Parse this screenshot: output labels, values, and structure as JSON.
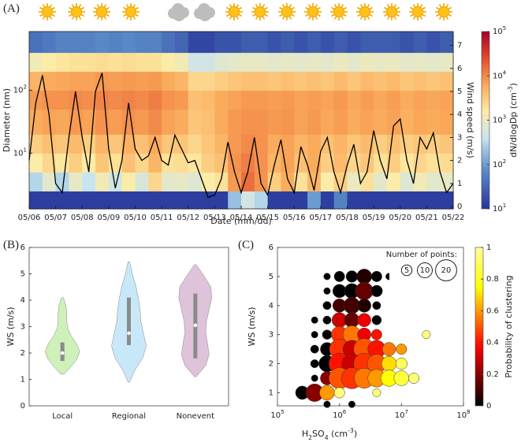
{
  "chart_data": [
    {
      "type": "heatmap",
      "panel": "(A)",
      "xlabel": "Date (mm/dd)",
      "ylabel": "Diameter (nm)",
      "y2label": "Wind speed (m/s)",
      "xlim": [
        6,
        22
      ],
      "xticks": [
        {
          "value": 6,
          "label": "05/06"
        },
        {
          "value": 7,
          "label": "05/07"
        },
        {
          "value": 8,
          "label": "05/08"
        },
        {
          "value": 9,
          "label": "05/09"
        },
        {
          "value": 10,
          "label": "05/10"
        },
        {
          "value": 11,
          "label": "05/11"
        },
        {
          "value": 12,
          "label": "05/12"
        },
        {
          "value": 13,
          "label": "05/13"
        },
        {
          "value": 14,
          "label": "05/14"
        },
        {
          "value": 15,
          "label": "05/15"
        },
        {
          "value": 16,
          "label": "05/16"
        },
        {
          "value": 17,
          "label": "05/17"
        },
        {
          "value": 18,
          "label": "05/18"
        },
        {
          "value": 19,
          "label": "05/19"
        },
        {
          "value": 20,
          "label": "05/20"
        },
        {
          "value": 21,
          "label": "05/21"
        },
        {
          "value": 22,
          "label": "05/22"
        }
      ],
      "ylim": [
        1.3,
        860
      ],
      "yscale": "log",
      "yticks": [
        {
          "value": 10,
          "label": "10^{1}"
        },
        {
          "value": 100,
          "label": "10^{2}"
        }
      ],
      "y2lim": [
        -0.1,
        7.6
      ],
      "y2ticks": [
        0,
        1,
        2,
        3,
        4,
        5,
        6,
        7
      ],
      "colormap": "RdYlBu_r",
      "colorbar": {
        "label": "dN/dlogDp (cm^{-3})",
        "lim": [
          10,
          100000
        ],
        "scale": "log",
        "ticks": [
          {
            "value": 10,
            "label": "10^{1}"
          },
          {
            "value": 100,
            "label": "10^{2}"
          },
          {
            "value": 1000,
            "label": "10^{3}"
          },
          {
            "value": 10000,
            "label": "10^{4}"
          },
          {
            "value": 100000,
            "label": "10^{5}"
          }
        ]
      },
      "x_bins": [
        6,
        6.5,
        7,
        7.5,
        8,
        8.5,
        9,
        9.5,
        10,
        10.5,
        11,
        11.5,
        12,
        12.5,
        13,
        13.5,
        14,
        14.5,
        15,
        15.5,
        16,
        16.5,
        17,
        17.5,
        18,
        18.5,
        19,
        19.5,
        20,
        20.5,
        21,
        21.5,
        22
      ],
      "y_bins": [
        1.3,
        2.5,
        5,
        10,
        20,
        50,
        100,
        200,
        400,
        860
      ],
      "z": [
        [
          12,
          12,
          12,
          12,
          12,
          12,
          12,
          12,
          12,
          12,
          12,
          12,
          12,
          12,
          12,
          200,
          500,
          300,
          12,
          12,
          12,
          100,
          12,
          60,
          12,
          12,
          12,
          12,
          12,
          12,
          12,
          12
        ],
        [
          300,
          800,
          300,
          900,
          400,
          1200,
          500,
          1500,
          600,
          2500,
          800,
          900,
          700,
          1500,
          2000,
          8000,
          15000,
          9000,
          3000,
          6000,
          2000,
          5000,
          1500,
          3000,
          1000,
          2000,
          800,
          1500,
          700,
          1200,
          800,
          900
        ],
        [
          1500,
          2500,
          1800,
          3000,
          1600,
          3500,
          2000,
          4000,
          2500,
          5000,
          2000,
          2200,
          1800,
          3000,
          4000,
          9000,
          12000,
          9000,
          5000,
          7000,
          4000,
          6000,
          3000,
          4500,
          2500,
          3500,
          2000,
          3000,
          1800,
          2500,
          2000,
          2200
        ],
        [
          3000,
          4000,
          3500,
          4500,
          3000,
          5000,
          3500,
          5500,
          4000,
          6000,
          3500,
          3500,
          2500,
          3500,
          5000,
          8000,
          10000,
          9000,
          6000,
          7000,
          5000,
          6000,
          4000,
          5000,
          3500,
          4500,
          3000,
          4000,
          3000,
          3500,
          3000,
          3500
        ],
        [
          6000,
          7000,
          6500,
          8000,
          7000,
          9000,
          7500,
          9000,
          8000,
          10000,
          7000,
          6000,
          3500,
          4000,
          6000,
          8000,
          9000,
          9000,
          8000,
          8500,
          7000,
          8000,
          6500,
          7500,
          6000,
          7000,
          6000,
          7000,
          5500,
          6500,
          6000,
          6500
        ],
        [
          8000,
          9000,
          9000,
          10000,
          9500,
          11000,
          10000,
          11000,
          10000,
          12000,
          9000,
          8000,
          4000,
          4500,
          6000,
          7000,
          8000,
          8000,
          7500,
          8000,
          7000,
          7500,
          7000,
          8000,
          6500,
          7500,
          6500,
          7500,
          6000,
          7000,
          6500,
          7000
        ],
        [
          5000,
          6000,
          6500,
          7000,
          7000,
          8000,
          7500,
          8000,
          7500,
          8000,
          6000,
          5000,
          2500,
          2500,
          3000,
          3500,
          4000,
          4000,
          3500,
          4000,
          3500,
          4000,
          3500,
          4500,
          3500,
          4500,
          4000,
          4500,
          3500,
          4000,
          3500,
          4000
        ],
        [
          1200,
          1500,
          1800,
          2000,
          2000,
          2200,
          2000,
          2200,
          2000,
          2000,
          1500,
          1200,
          500,
          500,
          700,
          800,
          900,
          900,
          800,
          900,
          800,
          900,
          800,
          1000,
          800,
          1000,
          900,
          1000,
          800,
          900,
          800,
          900
        ],
        [
          40,
          50,
          60,
          60,
          60,
          70,
          60,
          70,
          60,
          60,
          40,
          30,
          15,
          15,
          20,
          20,
          25,
          25,
          20,
          25,
          20,
          25,
          20,
          25,
          20,
          25,
          25,
          25,
          20,
          25,
          20,
          25
        ]
      ],
      "wind": {
        "axis": "y2",
        "color": "#000000",
        "x": [
          6,
          6.25,
          6.5,
          6.75,
          7,
          7.25,
          7.5,
          7.75,
          8,
          8.25,
          8.5,
          8.75,
          9,
          9.25,
          9.5,
          9.75,
          10,
          10.25,
          10.5,
          10.75,
          11,
          11.25,
          11.5,
          11.75,
          12,
          12.25,
          12.5,
          12.75,
          13,
          13.25,
          13.5,
          13.75,
          14,
          14.25,
          14.5,
          14.75,
          15,
          15.25,
          15.5,
          15.75,
          16,
          16.25,
          16.5,
          16.75,
          17,
          17.25,
          17.5,
          17.75,
          18,
          18.25,
          18.5,
          18.75,
          19,
          19.25,
          19.5,
          19.75,
          20,
          20.25,
          20.5,
          20.75,
          21,
          21.25,
          21.5,
          21.75,
          22
        ],
        "values": [
          2.0,
          4.5,
          5.7,
          4.0,
          1.0,
          0.6,
          3.0,
          5.0,
          3.0,
          1.5,
          5.0,
          5.8,
          2.5,
          0.8,
          2.0,
          4.5,
          2.5,
          2.0,
          2.2,
          3.0,
          2.0,
          1.8,
          3.1,
          2.5,
          1.9,
          2.0,
          1.2,
          0.4,
          0.5,
          1.2,
          2.8,
          1.5,
          0.6,
          1.5,
          3.0,
          1.0,
          0.5,
          1.8,
          2.9,
          1.2,
          0.6,
          2.6,
          1.8,
          0.7,
          2.4,
          3.0,
          1.5,
          0.6,
          1.8,
          2.7,
          1.0,
          1.5,
          3.3,
          2.0,
          1.2,
          3.5,
          3.8,
          2.0,
          1.0,
          3.0,
          2.5,
          3.2,
          1.5,
          0.6,
          1.0
        ]
      }
    },
    {
      "type": "violin",
      "panel": "(B)",
      "ylabel": "WS (m/s)",
      "ylim": [
        0,
        6
      ],
      "yticks": [
        0,
        1,
        2,
        3,
        4,
        5,
        6
      ],
      "categories": [
        "Local",
        "Regional",
        "Nonevent"
      ],
      "colors": [
        "#c9efb3",
        "#c2e5f7",
        "#dbbcd6"
      ],
      "min": [
        1.2,
        0.9,
        1.1
      ],
      "max": [
        4.1,
        5.45,
        5.35
      ],
      "q1": [
        1.7,
        2.3,
        1.8
      ],
      "median": [
        2.0,
        2.75,
        3.05
      ],
      "q3": [
        2.4,
        4.1,
        4.25
      ],
      "density": [
        [
          0.1,
          0.5,
          0.85,
          1.0,
          0.8,
          0.5,
          0.3,
          0.25,
          0.25,
          0.2,
          0.05
        ],
        [
          0.05,
          0.35,
          0.8,
          1.0,
          0.85,
          0.7,
          0.65,
          0.55,
          0.4,
          0.2,
          0.05
        ],
        [
          0.05,
          0.6,
          0.8,
          0.7,
          0.6,
          0.65,
          0.8,
          0.95,
          0.9,
          0.5,
          0.05
        ]
      ]
    },
    {
      "type": "bubble",
      "panel": "(C)",
      "xlabel": "H_{2}SO_{4} (cm^{-3})",
      "ylabel": "WS (m/s)",
      "xlim": [
        100000,
        100000000
      ],
      "xscale": "log",
      "xticks": [
        {
          "value": 100000,
          "label": "10^{5}"
        },
        {
          "value": 1000000,
          "label": "10^{6}"
        },
        {
          "value": 10000000,
          "label": "10^{7}"
        },
        {
          "value": 100000000,
          "label": "10^{8}"
        }
      ],
      "ylim": [
        0.55,
        6
      ],
      "yticks": [
        1,
        2,
        3,
        4,
        5,
        6
      ],
      "colormap": "hot",
      "colorbar": {
        "label": "Probability of clustering",
        "lim": [
          0,
          1
        ],
        "ticks": [
          0,
          0.2,
          0.4,
          0.6,
          0.8,
          1
        ]
      },
      "size_legend": {
        "title": "Number of points:",
        "values": [
          5,
          10,
          20
        ]
      },
      "x": [
        631000,
        1000000,
        1585000,
        2512000,
        3981000,
        6310000,
        631000,
        1000000,
        1585000,
        2512000,
        3981000,
        631000,
        1000000,
        1585000,
        2512000,
        3981000,
        398100,
        631000,
        1000000,
        1585000,
        2512000,
        3981000,
        398100,
        631000,
        1000000,
        1585000,
        2512000,
        3981000,
        25120000,
        398100,
        631000,
        1000000,
        1585000,
        2512000,
        3981000,
        6310000,
        10000000,
        398100,
        631000,
        1000000,
        1585000,
        2512000,
        3981000,
        6310000,
        10000000,
        398100,
        631000,
        1000000,
        1585000,
        2512000,
        3981000,
        6310000,
        10000000,
        15850000,
        251200,
        398100,
        631000,
        1000000,
        3981000,
        631000,
        1585000
      ],
      "y": [
        5,
        5,
        5,
        5,
        5,
        5,
        4.5,
        4.5,
        4.5,
        4.5,
        4.5,
        4,
        4,
        4,
        4,
        4,
        3.5,
        3.5,
        3.5,
        3.5,
        3.5,
        3.5,
        3,
        3,
        3,
        3,
        3,
        3,
        3,
        2.5,
        2.5,
        2.5,
        2.5,
        2.5,
        2.5,
        2.5,
        2.5,
        2,
        2,
        2,
        2,
        2,
        2,
        2,
        2,
        1.5,
        1.5,
        1.5,
        1.5,
        1.5,
        1.5,
        1.5,
        1.5,
        1.5,
        1,
        1,
        1,
        1,
        1,
        0.6,
        0.6
      ],
      "sizes": [
        2,
        5,
        6,
        10,
        5,
        2,
        2,
        8,
        10,
        14,
        6,
        3,
        8,
        12,
        8,
        3,
        2,
        3,
        10,
        10,
        8,
        4,
        2,
        4,
        12,
        14,
        8,
        5,
        3,
        3,
        8,
        18,
        14,
        20,
        14,
        8,
        5,
        3,
        12,
        20,
        18,
        20,
        16,
        10,
        6,
        2,
        8,
        20,
        20,
        18,
        14,
        12,
        10,
        5,
        8,
        14,
        10,
        5,
        3,
        2,
        2
      ],
      "probability": [
        0,
        0,
        0,
        0.05,
        0,
        0,
        0,
        0,
        0,
        0.15,
        0,
        0,
        0.1,
        0.1,
        0.05,
        0,
        0,
        0,
        0.3,
        0.15,
        0.35,
        0,
        0,
        0,
        0.45,
        0.55,
        0.35,
        0.4,
        0.95,
        0,
        0,
        0.45,
        0.3,
        0.5,
        0.4,
        0.55,
        0.6,
        0,
        0,
        0.4,
        0.3,
        0.45,
        0.5,
        0.7,
        0.9,
        0,
        0.2,
        0.5,
        0.45,
        0.55,
        0.6,
        0.75,
        0.85,
        0.95,
        0,
        0.2,
        0.6,
        0.95,
        0.95,
        0,
        0
      ]
    }
  ]
}
